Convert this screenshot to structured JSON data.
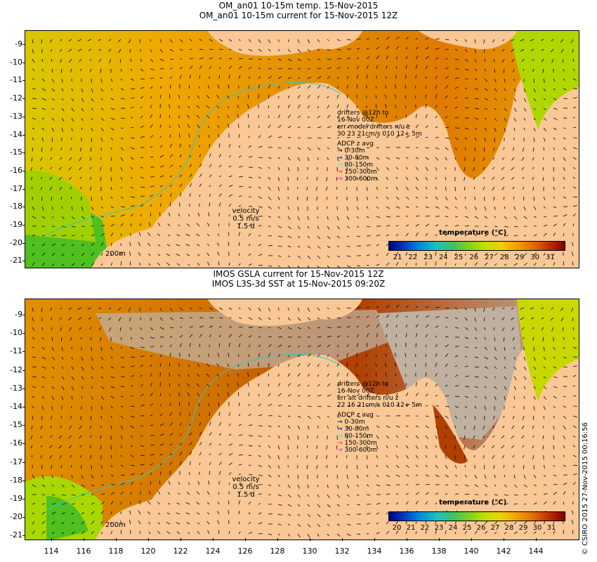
{
  "top": {
    "title_line1": "OM_an01 10-15m temp. 15-Nov-2015",
    "title_line2": "OM_an01 10-15m current for 15-Nov-2015 12Z",
    "drifter_text": [
      "drifters @12h to",
      "16-Nov 00Z",
      "err model drifters n/u z",
      "30 23 21cm/s 010 12+ 5m"
    ],
    "adcp_title": "ADCP z avg",
    "adcp_items": [
      {
        "label": "0-30m",
        "color": "#000000"
      },
      {
        "label": "30-80m",
        "color": "#0000ff"
      },
      {
        "label": "80-150m",
        "color": "#00ffff"
      },
      {
        "label": "150-300m",
        "color": "#ff3300"
      },
      {
        "label": "300-600m",
        "color": "#ff00ff"
      }
    ],
    "velocity": [
      "velocity",
      "0.5 m/s",
      "1.5 d"
    ],
    "scale_label": "200m",
    "colorbar_title": "temperature (°C)",
    "colorbar_labels": [
      "21",
      "22",
      "23",
      "24",
      "25",
      "26",
      "27",
      "28",
      "29",
      "30",
      "31"
    ]
  },
  "bottom": {
    "title_line1": "IMOS GSLA current for 15-Nov-2015 12Z",
    "title_line2": "IMOS L3S-3d SST at 15-Nov-2015 09:20Z",
    "drifter_text": [
      "drifters @12h to",
      "16-Nov 00Z",
      "err alt drifters n/u z",
      "22 16 21cm/s 010 12+ 5m"
    ],
    "adcp_title": "ADCP z avg",
    "adcp_items": [
      {
        "label": "0-30m",
        "color": "#000000"
      },
      {
        "label": "30-80m",
        "color": "#0000ff"
      },
      {
        "label": "80-150m",
        "color": "#00ffff"
      },
      {
        "label": "150-300m",
        "color": "#ff3300"
      },
      {
        "label": "300-600m",
        "color": "#ff00ff"
      }
    ],
    "velocity": [
      "velocity",
      "0.5 m/s",
      "1.5 d"
    ],
    "scale_label": "200m",
    "colorbar_title": "temperature (°C)",
    "colorbar_labels": [
      "20",
      "21",
      "22",
      "23",
      "24",
      "25",
      "26",
      "27",
      "28",
      "29",
      "30",
      "31"
    ]
  },
  "y_axis_labels": [
    "-9",
    "-10",
    "-11",
    "-12",
    "-13",
    "-14",
    "-15",
    "-16",
    "-17",
    "-18",
    "-19",
    "-20",
    "-21"
  ],
  "x_axis_labels": [
    "114",
    "116",
    "118",
    "120",
    "122",
    "124",
    "126",
    "128",
    "130",
    "132",
    "134",
    "136",
    "138",
    "140",
    "142",
    "144"
  ],
  "credit": "© CSIRO 2015  27-Nov-2015 00:16:56",
  "colors": {
    "land": "#f9c896",
    "ocean_warm": "#e08a00",
    "ocean_mid": "#f0a800",
    "ocean_cool": "#c8d800",
    "ocean_cold": "#40c040",
    "no_data": "#c0b0a0",
    "isobath": "#30c8c8"
  }
}
